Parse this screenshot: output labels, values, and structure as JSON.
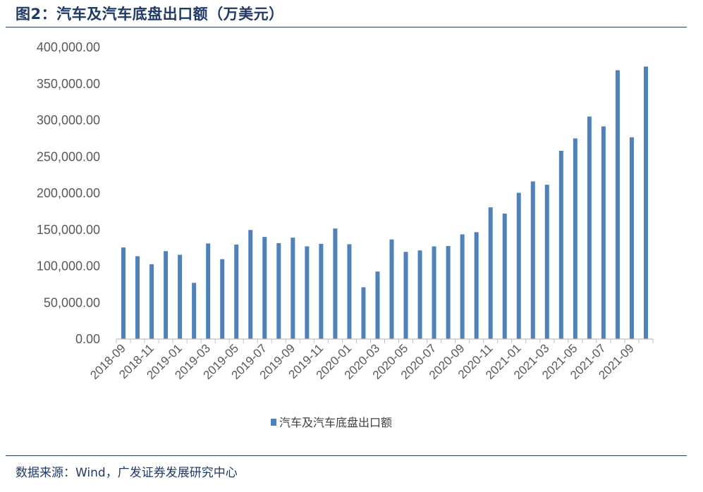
{
  "header": {
    "title": "图2：汽车及汽车底盘出口额（万美元）"
  },
  "footer": {
    "source": "数据来源：Wind，广发证券发展研究中心"
  },
  "chart_data": {
    "type": "bar",
    "ylim": [
      0,
      400000
    ],
    "yticks": [
      0,
      50000,
      100000,
      150000,
      200000,
      250000,
      300000,
      350000,
      400000
    ],
    "ytick_labels": [
      "0.00",
      "50,000.00",
      "100,000.00",
      "150,000.00",
      "200,000.00",
      "250,000.00",
      "300,000.00",
      "350,000.00",
      "400,000.00"
    ],
    "xtick_labels": [
      "2018-09",
      "2018-11",
      "2019-01",
      "2019-03",
      "2019-05",
      "2019-07",
      "2019-09",
      "2019-11",
      "2020-01",
      "2020-03",
      "2020-05",
      "2020-07",
      "2020-09",
      "2020-11",
      "2021-01",
      "2021-03",
      "2021-05",
      "2021-07",
      "2021-09"
    ],
    "categories": [
      "2018-09",
      "2018-10",
      "2018-11",
      "2018-12",
      "2019-01",
      "2019-02",
      "2019-03",
      "2019-04",
      "2019-05",
      "2019-06",
      "2019-07",
      "2019-08",
      "2019-09",
      "2019-10",
      "2019-11",
      "2019-12",
      "2020-01",
      "2020-02",
      "2020-03",
      "2020-04",
      "2020-05",
      "2020-06",
      "2020-07",
      "2020-08",
      "2020-09",
      "2020-10",
      "2020-11",
      "2020-12",
      "2021-01",
      "2021-02",
      "2021-03",
      "2021-04",
      "2021-05",
      "2021-06",
      "2021-07",
      "2021-08",
      "2021-09",
      "2021-10"
    ],
    "series": [
      {
        "name": "汽车及汽车底盘出口额",
        "color": "#4f81bd",
        "values": [
          125500,
          113500,
          102500,
          120500,
          115500,
          77000,
          131000,
          109500,
          129500,
          149500,
          140000,
          131500,
          139000,
          127000,
          130500,
          151500,
          130000,
          71000,
          92500,
          136500,
          119500,
          121500,
          127000,
          127500,
          143500,
          146500,
          180500,
          172000,
          200500,
          216000,
          211500,
          258000,
          275000,
          305000,
          291500,
          368500,
          276500,
          373500
        ]
      }
    ],
    "grid": false,
    "legend_position": "bottom"
  }
}
